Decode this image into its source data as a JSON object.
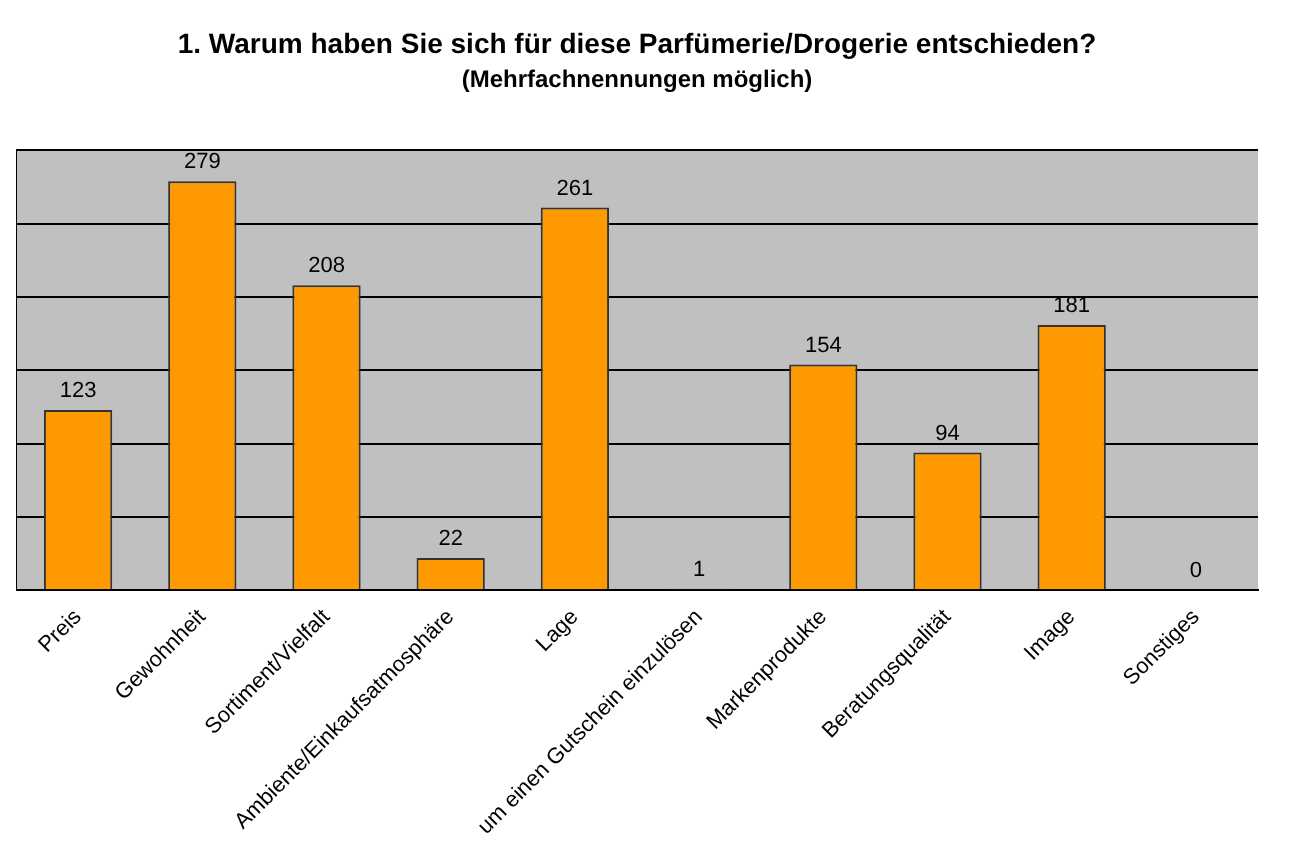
{
  "chart_data": {
    "type": "bar",
    "title": "1. Warum haben Sie sich für diese Parfümerie/Drogerie entschieden?",
    "subtitle": "(Mehrfachnennungen möglich)",
    "categories": [
      "Preis",
      "Gewohnheit",
      "Sortiment/Vielfalt",
      "Ambiente/Einkaufsatmosphäre",
      "Lage",
      "um einen Gutschein einzulösen",
      "Markenprodukte",
      "Beratungsqualität",
      "Image",
      "Sonstiges"
    ],
    "values": [
      123,
      279,
      208,
      22,
      261,
      1,
      154,
      94,
      181,
      0
    ],
    "color": "#ff9900",
    "ylim": [
      0,
      300
    ],
    "yticks": [
      {
        "value": 0,
        "label": null
      },
      {
        "value": 50,
        "label": null
      },
      {
        "value": 100,
        "label": null
      },
      {
        "value": 150,
        "label": null
      },
      {
        "value": 200,
        "label": null
      },
      {
        "value": 250,
        "label": null
      },
      {
        "value": 300,
        "label": null
      }
    ],
    "grid": "y",
    "tick_labels": "x",
    "data_labels": true,
    "legend": false
  }
}
